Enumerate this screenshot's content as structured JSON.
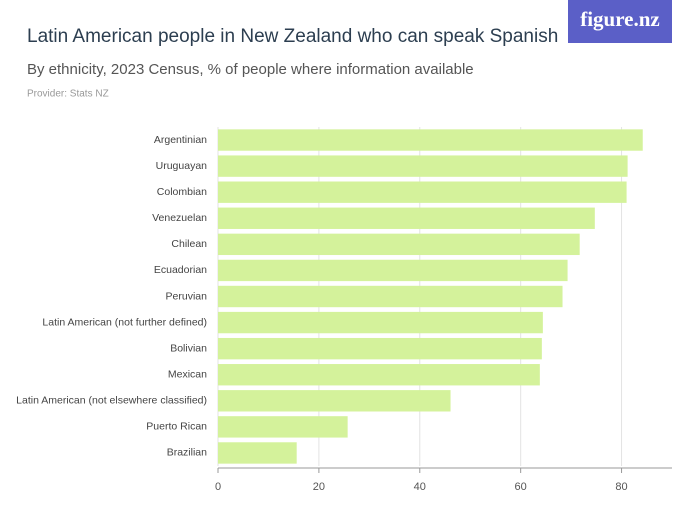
{
  "logo": "figure.nz",
  "chart_data": {
    "type": "bar",
    "orientation": "horizontal",
    "title": "Latin American people in New Zealand who can speak Spanish",
    "subtitle": "By ethnicity, 2023 Census, % of people where information available",
    "provider": "Provider: Stats NZ",
    "categories": [
      "Argentinian",
      "Uruguayan",
      "Colombian",
      "Venezuelan",
      "Chilean",
      "Ecuadorian",
      "Peruvian",
      "Latin American (not further defined)",
      "Bolivian",
      "Mexican",
      "Latin American (not elsewhere classified)",
      "Puerto Rican",
      "Brazilian"
    ],
    "values": [
      84.2,
      81.2,
      81.0,
      74.7,
      71.7,
      69.3,
      68.3,
      64.4,
      64.2,
      63.8,
      46.1,
      25.7,
      15.6
    ],
    "color": "#d4f29b",
    "xlim": [
      0,
      90
    ],
    "xticks": [
      0,
      20,
      40,
      60,
      80
    ],
    "grid": true
  }
}
